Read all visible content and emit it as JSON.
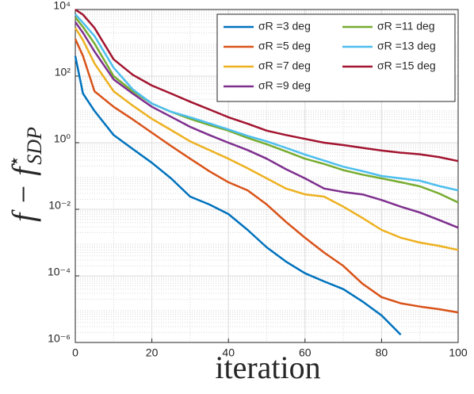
{
  "chart_data": {
    "type": "line",
    "xlabel": "iteration",
    "ylabel": "f − f",
    "ylabel_sup": "⋆",
    "ylabel_sub": "SDP",
    "log_y": true,
    "grid": true,
    "minor_grid": true,
    "legend": "upper right",
    "x": [
      0,
      2,
      5,
      10,
      15,
      20,
      25,
      30,
      35,
      40,
      45,
      50,
      55,
      60,
      65,
      70,
      75,
      80,
      85,
      90,
      95,
      100
    ],
    "xlim": [
      0,
      100
    ],
    "xticks": [
      0,
      20,
      40,
      60,
      80,
      100
    ],
    "ylim": [
      1e-06,
      10000
    ],
    "yticks": [
      {
        "value": 1e-06,
        "label": "10⁻⁶"
      },
      {
        "value": 0.0001,
        "label": "10⁻⁴"
      },
      {
        "value": 0.01,
        "label": "10⁻²"
      },
      {
        "value": 1,
        "label": "10⁰"
      },
      {
        "value": 100,
        "label": "10²"
      },
      {
        "value": 10000,
        "label": "10⁴"
      }
    ],
    "series": [
      {
        "name": "σR =3 deg",
        "color": "#0072bd",
        "values": [
          400,
          30,
          9,
          1.7,
          0.65,
          0.25,
          0.085,
          0.024,
          0.014,
          0.0072,
          0.0024,
          0.00072,
          0.00027,
          0.00012,
          6.8e-05,
          4e-05,
          1.7e-05,
          6.5e-06,
          1.7e-06,
          null,
          null,
          null
        ]
      },
      {
        "name": "σR =5 deg",
        "color": "#d95319",
        "values": [
          1300,
          400,
          35,
          12,
          5,
          2,
          0.8,
          0.33,
          0.14,
          0.065,
          0.037,
          0.014,
          0.0042,
          0.0014,
          0.0005,
          0.0002,
          5.8e-05,
          2.3e-05,
          1.5e-05,
          1.2e-05,
          1e-05,
          8e-06
        ]
      },
      {
        "name": "σR =7 deg",
        "color": "#edb120",
        "values": [
          2800,
          1200,
          240,
          35,
          13,
          5.2,
          2.4,
          1.1,
          0.6,
          0.33,
          0.17,
          0.085,
          0.042,
          0.028,
          0.024,
          0.012,
          0.0055,
          0.0024,
          0.0014,
          0.001,
          0.0008,
          0.0006
        ]
      },
      {
        "name": "σR =9 deg",
        "color": "#7e2f8e",
        "values": [
          4200,
          2000,
          550,
          80,
          30,
          12,
          6,
          3,
          1.7,
          1,
          0.6,
          0.33,
          0.16,
          0.085,
          0.042,
          0.033,
          0.028,
          0.019,
          0.012,
          0.008,
          0.0048,
          0.0028
        ]
      },
      {
        "name": "σR =11 deg",
        "color": "#77ac30",
        "values": [
          5800,
          3000,
          950,
          100,
          35,
          15,
          8.5,
          5.2,
          3.4,
          2.3,
          1.4,
          0.9,
          0.55,
          0.33,
          0.23,
          0.15,
          0.11,
          0.085,
          0.065,
          0.049,
          0.03,
          0.016
        ]
      },
      {
        "name": "σR =13 deg",
        "color": "#4dbeee",
        "values": [
          7200,
          4000,
          1600,
          180,
          40,
          15,
          8.5,
          5.8,
          3.8,
          2.5,
          1.6,
          1.1,
          0.7,
          0.44,
          0.29,
          0.19,
          0.14,
          0.1,
          0.085,
          0.072,
          0.05,
          0.037
        ]
      },
      {
        "name": "σR =15 deg",
        "color": "#a2142f",
        "values": [
          10000,
          7000,
          2800,
          320,
          110,
          52,
          30,
          17,
          10,
          5.8,
          3.7,
          2.3,
          1.7,
          1.3,
          1.0,
          0.85,
          0.7,
          0.58,
          0.5,
          0.45,
          0.37,
          0.28
        ]
      }
    ]
  }
}
